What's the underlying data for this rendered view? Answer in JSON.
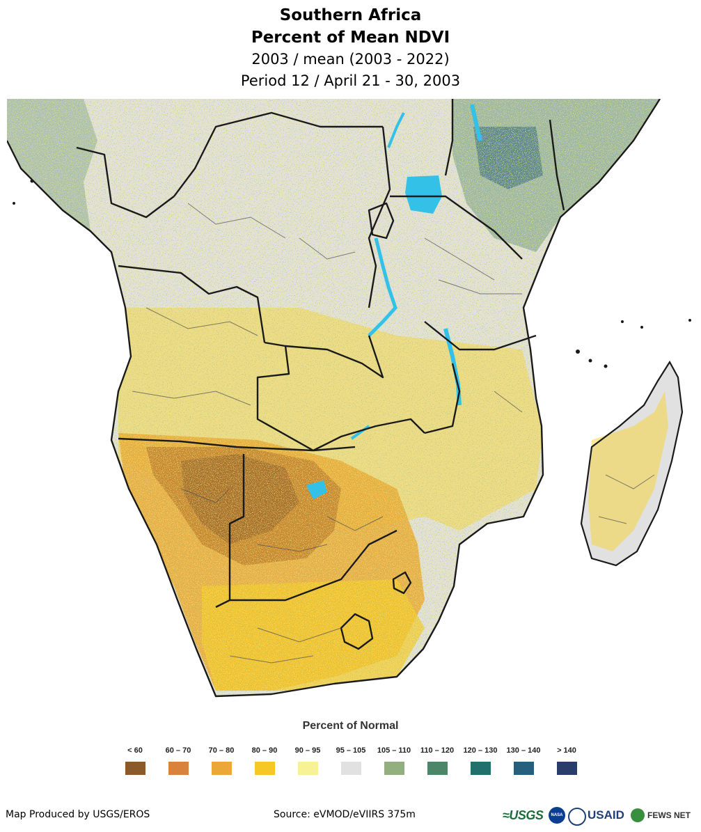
{
  "title": {
    "line1": "Southern Africa",
    "line2": "Percent of Mean NDVI",
    "line3": "2003 / mean (2003 - 2022)",
    "line4": "Period 12 / April 21 - 30, 2003"
  },
  "legend": {
    "title": "Percent of Normal",
    "items": [
      {
        "label": "< 60",
        "color": "#8B5A2B"
      },
      {
        "label": "60 – 70",
        "color": "#D9823B"
      },
      {
        "label": "70 – 80",
        "color": "#EBA836"
      },
      {
        "label": "80 – 90",
        "color": "#F5C826"
      },
      {
        "label": "90 – 95",
        "color": "#F8F296"
      },
      {
        "label": "95 – 105",
        "color": "#E1E1E1"
      },
      {
        "label": "105 – 110",
        "color": "#93AE7F"
      },
      {
        "label": "110 – 120",
        "color": "#4C8668"
      },
      {
        "label": "120 – 130",
        "color": "#22706C"
      },
      {
        "label": "130 – 140",
        "color": "#25607F"
      },
      {
        "label": "> 140",
        "color": "#2A3D6A"
      }
    ]
  },
  "map": {
    "background_color": "#E1E1E1",
    "water_color": "#33C1E8",
    "border_color": "#1a1a1a"
  },
  "footer": {
    "left": "Map Produced by USGS/EROS",
    "center": "Source: eVMOD/eVIIRS 375m"
  },
  "logos": {
    "usgs": "≈USGS",
    "nasa": "NASA",
    "usaid": "USAID",
    "fews": "FEWS NET"
  }
}
